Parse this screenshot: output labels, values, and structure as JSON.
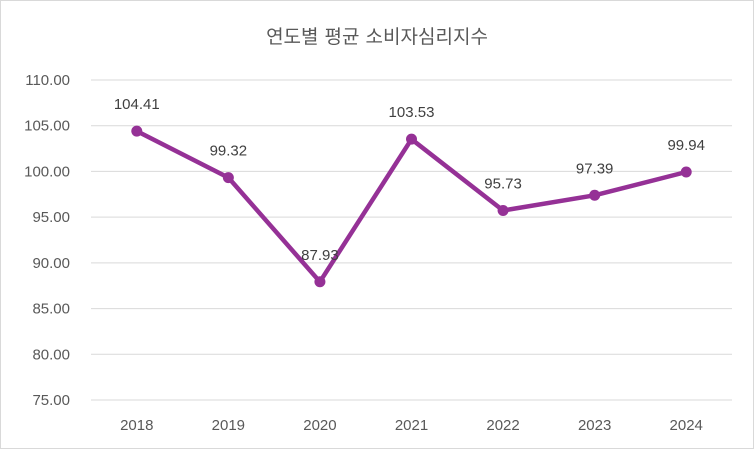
{
  "chart_data": {
    "type": "line",
    "title": "연도별 평균 소비자심리지수",
    "categories": [
      "2018",
      "2019",
      "2020",
      "2021",
      "2022",
      "2023",
      "2024"
    ],
    "series": [
      {
        "name": "평균 소비자심리지수",
        "values": [
          104.41,
          99.32,
          87.93,
          103.53,
          95.73,
          97.39,
          99.94
        ],
        "labels": [
          "104.41",
          "99.32",
          "87.93",
          "103.53",
          "95.73",
          "97.39",
          "99.94"
        ]
      }
    ],
    "y_ticks": [
      "75.00",
      "80.00",
      "85.00",
      "90.00",
      "95.00",
      "100.00",
      "105.00",
      "110.00"
    ],
    "ylim": [
      75,
      110
    ],
    "xlabel": "",
    "ylabel": "",
    "grid": true,
    "legend": "none"
  },
  "colors": {
    "line": "#953196",
    "grid": "#d9d9d9",
    "text": "#595959"
  }
}
